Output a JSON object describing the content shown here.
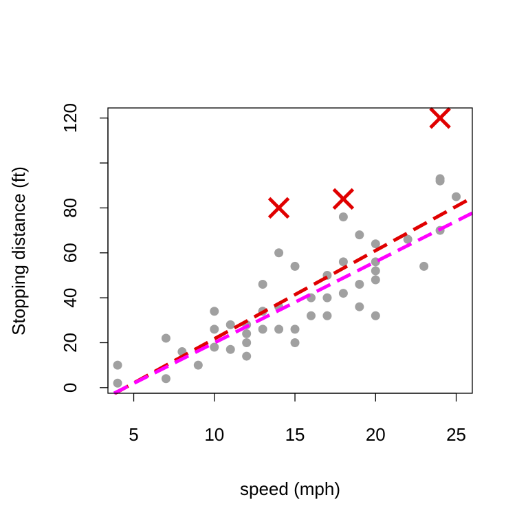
{
  "chart_data": {
    "type": "scatter",
    "title": "",
    "xlabel": "speed (mph)",
    "ylabel": "Stopping distance (ft)",
    "xlim": [
      3.4,
      26
    ],
    "ylim": [
      -2.5,
      124.5
    ],
    "x_ticks": [
      5,
      10,
      15,
      20,
      25
    ],
    "x_tick_labels": [
      "5",
      "10",
      "15",
      "20",
      "25"
    ],
    "y_ticks": [
      0,
      20,
      40,
      60,
      80,
      100,
      120
    ],
    "y_tick_labels": [
      "0",
      "20",
      "40",
      "60",
      "80",
      "",
      "120"
    ],
    "grid": false,
    "legend": "none",
    "series": [
      {
        "kind": "points",
        "color": "#a0a0a0",
        "marker": "filled-circle",
        "points": [
          [
            4,
            2
          ],
          [
            4,
            10
          ],
          [
            7,
            4
          ],
          [
            7,
            22
          ],
          [
            8,
            16
          ],
          [
            9,
            10
          ],
          [
            10,
            18
          ],
          [
            10,
            26
          ],
          [
            10,
            34
          ],
          [
            11,
            17
          ],
          [
            11,
            28
          ],
          [
            12,
            14
          ],
          [
            12,
            20
          ],
          [
            12,
            24
          ],
          [
            12,
            28
          ],
          [
            13,
            26
          ],
          [
            13,
            34
          ],
          [
            13,
            34
          ],
          [
            13,
            46
          ],
          [
            14,
            26
          ],
          [
            14,
            36
          ],
          [
            14,
            60
          ],
          [
            15,
            20
          ],
          [
            15,
            26
          ],
          [
            15,
            54
          ],
          [
            16,
            32
          ],
          [
            16,
            40
          ],
          [
            17,
            32
          ],
          [
            17,
            40
          ],
          [
            17,
            50
          ],
          [
            18,
            42
          ],
          [
            18,
            56
          ],
          [
            18,
            76
          ],
          [
            19,
            36
          ],
          [
            19,
            46
          ],
          [
            19,
            68
          ],
          [
            20,
            32
          ],
          [
            20,
            48
          ],
          [
            20,
            52
          ],
          [
            20,
            56
          ],
          [
            20,
            64
          ],
          [
            22,
            66
          ],
          [
            23,
            54
          ],
          [
            24,
            70
          ],
          [
            24,
            92
          ],
          [
            24,
            93
          ],
          [
            25,
            85
          ]
        ]
      },
      {
        "kind": "points",
        "color": "#e00000",
        "marker": "x-cross",
        "points": [
          [
            14,
            80
          ],
          [
            18,
            84
          ],
          [
            24,
            120
          ]
        ]
      },
      {
        "kind": "line",
        "color": "#e00000",
        "style": "dashed",
        "intercept": -17.58,
        "slope": 3.93
      },
      {
        "kind": "line",
        "color": "#ff00ff",
        "style": "dashed",
        "intercept": -16.15,
        "slope": 3.61
      }
    ]
  }
}
